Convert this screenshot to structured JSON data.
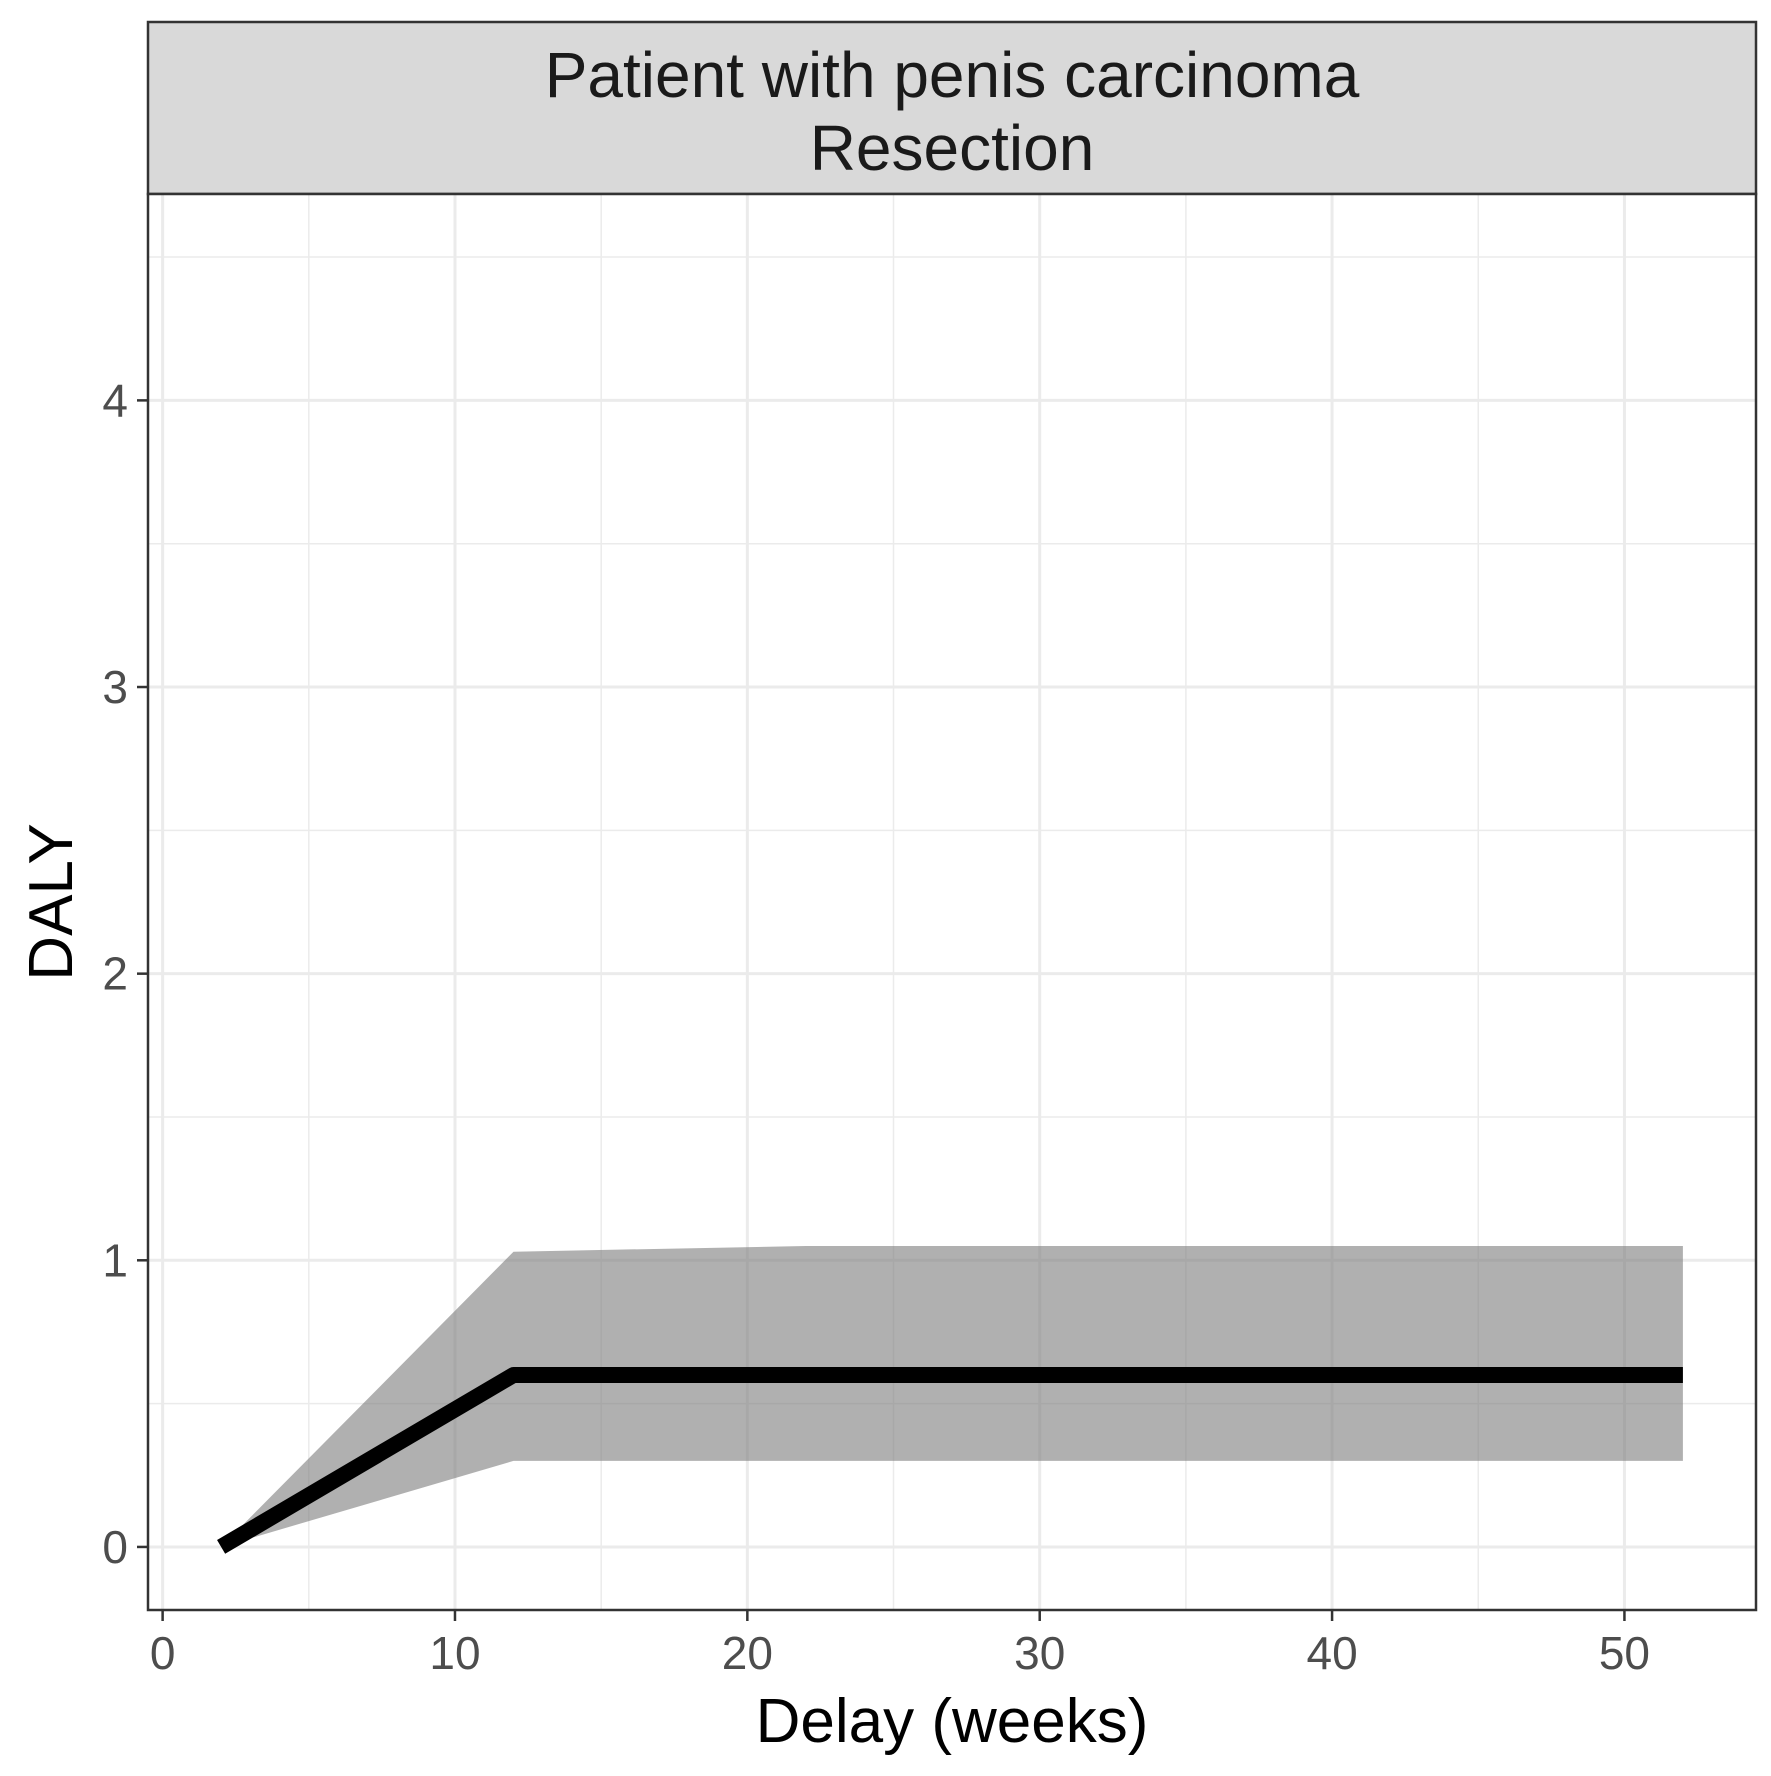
{
  "chart_data": {
    "type": "line",
    "facet_title": [
      "Patient with penis carcinoma",
      "Resection"
    ],
    "xlabel": "Delay (weeks)",
    "ylabel": "DALY",
    "xlim": [
      -0.5,
      54.5
    ],
    "ylim": [
      -0.22,
      4.72
    ],
    "xticks": [
      0,
      10,
      20,
      30,
      40,
      50
    ],
    "yticks": [
      0,
      1,
      2,
      3,
      4
    ],
    "x_minor": [
      5,
      15,
      25,
      35,
      45
    ],
    "y_minor": [
      0.5,
      1.5,
      2.5,
      3.5,
      4.5
    ],
    "grid": true,
    "series": [
      {
        "x": [
          2,
          12,
          22,
          52
        ],
        "y": [
          0,
          0.6,
          0.6,
          0.6
        ],
        "lower": [
          0,
          0.3,
          0.3,
          0.3
        ],
        "upper": [
          0,
          1.03,
          1.05,
          1.05
        ],
        "color": "#000000",
        "ribbon_color": "#7f7f7f"
      }
    ]
  }
}
